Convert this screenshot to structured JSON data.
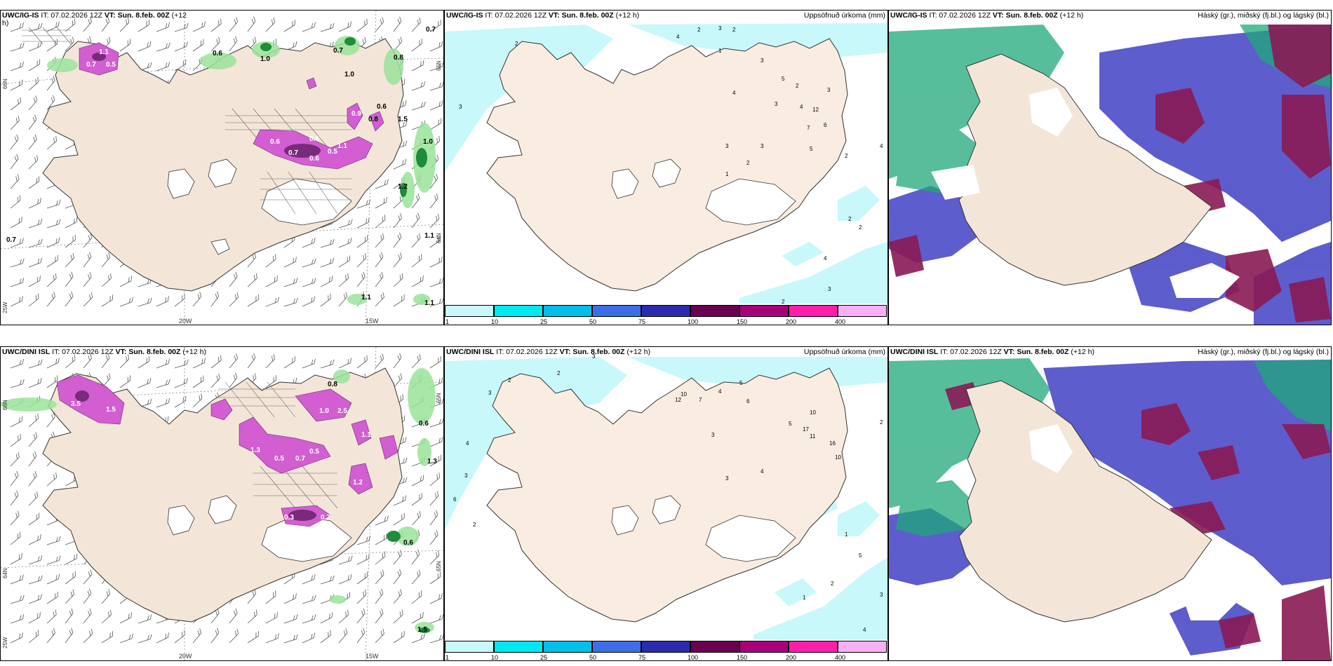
{
  "panels": {
    "top_left": {
      "model": "UWC/IG-IS",
      "it": "IT: 07.02.2026 12Z",
      "vt": "VT: Sun. 8.feb. 00Z",
      "lead": "(+12",
      "lead2": "h)"
    },
    "top_mid": {
      "model": "UWC/IG-IS",
      "it": "IT: 07.02.2026 12Z",
      "vt": "VT: Sun. 8.feb. 00Z",
      "lead": "(+12 h)",
      "right": "Uppsöfnuð úrkoma (mm)"
    },
    "top_right": {
      "model": "UWC/IG-IS",
      "it": "IT: 07.02.2026 12Z",
      "vt": "VT: Sun. 8.feb. 00Z",
      "lead": "(+12 h)",
      "right": "Háský (gr.), miðský (fj.bl.) og lágský (bl.)"
    },
    "bot_left": {
      "model": "UWC/DINI ISL",
      "it": "IT: 07.02.2026 12Z",
      "vt": "VT: Sun. 8.feb. 00Z",
      "lead": "(+12 h)"
    },
    "bot_mid": {
      "model": "UWC/DINI ISL",
      "it": "IT: 07.02.2026 12Z",
      "vt": "VT: Sun. 8.feb. 00Z",
      "lead": "(+12 h)",
      "right": "Uppsöfnuð úrkoma (mm)"
    },
    "bot_right": {
      "model": "UWC/DINI ISL",
      "it": "IT: 07.02.2026 12Z",
      "vt": "VT: Sun. 8.feb. 00Z",
      "lead": "(+12 h)",
      "right": "Háský (gr.), miðský (fj.bl.) og lágský (bl.)"
    }
  },
  "grid_labels": {
    "lat66": "66N",
    "lat64": "64N",
    "lat65": "65N",
    "lon20": "20W",
    "lon15": "15W",
    "lon25": "25W"
  },
  "colorbar": {
    "ticks": [
      "1",
      "10",
      "25",
      "50",
      "75",
      "100",
      "150",
      "200",
      "400"
    ],
    "colors": [
      "#c8f8fa",
      "#00e8f0",
      "#00bfe8",
      "#3d6ee8",
      "#2b2bb0",
      "#6a0050",
      "#a8007a",
      "#ff1faa",
      "#f7b0f5"
    ]
  },
  "values": {
    "tl_green": [
      "0.7",
      "0.8",
      "0.7",
      "1.0",
      "0.6",
      "0.6",
      "0.8",
      "1.5",
      "0.7",
      "1.0",
      "1.0",
      "1.2",
      "1.1",
      "1.1",
      "1.1"
    ],
    "tl_purple": [
      "1.1",
      "0.7",
      "0.5",
      "0.7",
      "0.9",
      "0.6",
      "0.5",
      "0.6",
      "0.9",
      "1.1"
    ],
    "tm": [
      "2",
      "3",
      "4",
      "2",
      "3",
      "2",
      "1",
      "3",
      "5",
      "3",
      "4",
      "12",
      "2",
      "4",
      "7",
      "6",
      "5",
      "2",
      "3",
      "3",
      "2",
      "4",
      "3",
      "1",
      "2",
      "2",
      "4",
      "2",
      "3"
    ],
    "bl_green": [
      "0.8",
      "0.6",
      "1.3",
      "0.6",
      "1.5"
    ],
    "bl_purple": [
      "3.5",
      "1.5",
      "1.3",
      "1.0",
      "2.5",
      "1.1",
      "0.5",
      "1.2",
      "0.7",
      "0.5",
      "0.7",
      "0.3"
    ],
    "bm": [
      "2",
      "3",
      "4",
      "2",
      "3",
      "5",
      "12",
      "10",
      "7",
      "4",
      "3",
      "6",
      "5",
      "10",
      "11",
      "17",
      "16",
      "10",
      "4",
      "3",
      "2",
      "6",
      "3",
      "2",
      "1",
      "5",
      "4",
      "2",
      "1",
      "3"
    ]
  }
}
